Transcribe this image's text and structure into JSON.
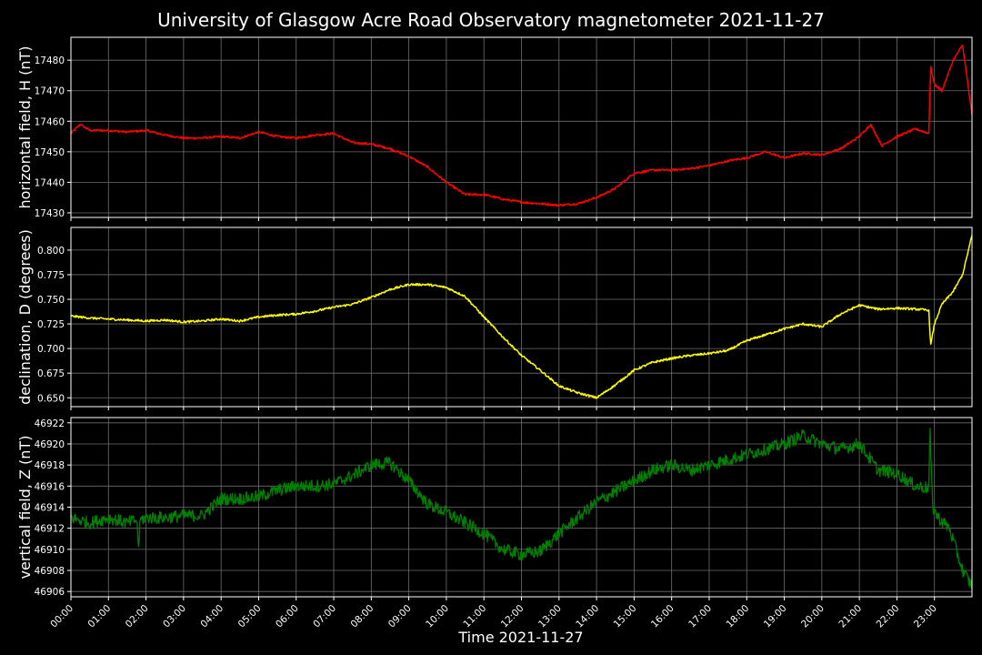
{
  "title": "University of Glasgow Acre Road Observatory magnetometer 2021-11-27",
  "xlabel": "Time 2021-11-27",
  "x_tick_labels": [
    "00:00",
    "01:00",
    "02:00",
    "03:00",
    "04:00",
    "05:00",
    "06:00",
    "07:00",
    "08:00",
    "09:00",
    "10:00",
    "11:00",
    "12:00",
    "13:00",
    "14:00",
    "15:00",
    "16:00",
    "17:00",
    "18:00",
    "19:00",
    "20:00",
    "21:00",
    "22:00",
    "23:00"
  ],
  "chart_data": [
    {
      "type": "line",
      "ylabel": "horizontal field, H (nT)",
      "color": "#ff0000",
      "ylim": [
        17428.5,
        17487.5
      ],
      "yticks": [
        17430,
        17440,
        17450,
        17460,
        17470,
        17480
      ],
      "x_hours": [
        0,
        0.25,
        0.5,
        1,
        1.5,
        2,
        2.5,
        3,
        3.5,
        4,
        4.5,
        5,
        5.5,
        6,
        6.5,
        7,
        7.5,
        8,
        8.5,
        9,
        9.5,
        10,
        10.5,
        11,
        11.5,
        12,
        12.5,
        13,
        13.5,
        14,
        14.5,
        15,
        15.5,
        16,
        16.5,
        17,
        17.5,
        18,
        18.5,
        19,
        19.5,
        20,
        20.5,
        21,
        21.3,
        21.6,
        22,
        22.5,
        22.85,
        22.9,
        23.0,
        23.2,
        23.5,
        23.75,
        24
      ],
      "values": [
        17456,
        17459,
        17457,
        17457,
        17456.5,
        17457,
        17455.5,
        17454.5,
        17454.5,
        17455,
        17454.5,
        17456.5,
        17455,
        17454.5,
        17455.5,
        17456,
        17453,
        17452.5,
        17451,
        17448.5,
        17445,
        17440,
        17436,
        17436,
        17434.5,
        17433.5,
        17433,
        17432.5,
        17433,
        17435,
        17438,
        17443,
        17444,
        17444,
        17444.5,
        17445.5,
        17447,
        17448,
        17450,
        17448,
        17449.5,
        17449,
        17451,
        17455,
        17459,
        17452,
        17455,
        17457.5,
        17456,
        17478,
        17472,
        17470,
        17480,
        17485,
        17462
      ]
    },
    {
      "type": "line",
      "ylabel": "declination, D (degrees)",
      "color": "#ffff00",
      "ylim": [
        0.641,
        0.823
      ],
      "yticks": [
        0.65,
        0.675,
        0.7,
        0.725,
        0.75,
        0.775,
        0.8
      ],
      "x_hours": [
        0,
        0.5,
        1,
        1.5,
        2,
        2.5,
        3,
        3.5,
        4,
        4.5,
        5,
        5.5,
        6,
        6.5,
        7,
        7.5,
        8,
        8.5,
        9,
        9.5,
        10,
        10.5,
        11,
        11.5,
        12,
        12.5,
        13,
        13.5,
        14,
        14.5,
        15,
        15.5,
        16,
        16.5,
        17,
        17.5,
        18,
        18.5,
        19,
        19.5,
        20,
        20.5,
        21,
        21.5,
        22,
        22.5,
        22.85,
        22.9,
        23.0,
        23.2,
        23.5,
        23.75,
        24
      ],
      "values": [
        0.733,
        0.731,
        0.73,
        0.729,
        0.728,
        0.729,
        0.727,
        0.728,
        0.73,
        0.728,
        0.732,
        0.734,
        0.735,
        0.738,
        0.742,
        0.745,
        0.752,
        0.76,
        0.765,
        0.765,
        0.762,
        0.753,
        0.732,
        0.712,
        0.693,
        0.678,
        0.662,
        0.655,
        0.65,
        0.663,
        0.678,
        0.686,
        0.69,
        0.693,
        0.695,
        0.698,
        0.708,
        0.714,
        0.72,
        0.725,
        0.722,
        0.735,
        0.744,
        0.74,
        0.741,
        0.74,
        0.739,
        0.703,
        0.725,
        0.745,
        0.758,
        0.775,
        0.815
      ]
    },
    {
      "type": "line",
      "ylabel": "vertical field, Z (nT)",
      "color": "#008000",
      "ylim": [
        46905.5,
        46922.5
      ],
      "yticks": [
        46906,
        46908,
        46910,
        46912,
        46914,
        46916,
        46918,
        46920,
        46922
      ],
      "x_hours": [
        0,
        0.5,
        1,
        1.5,
        1.75,
        1.8,
        1.85,
        2,
        2.5,
        3,
        3.5,
        4,
        4.5,
        5,
        5.5,
        6,
        6.5,
        7,
        7.5,
        8,
        8.5,
        9,
        9.5,
        10,
        10.5,
        11,
        11.5,
        12,
        12.5,
        13,
        13.5,
        14,
        14.5,
        15,
        15.5,
        16,
        16.5,
        17,
        17.5,
        18,
        18.5,
        19,
        19.5,
        20,
        20.5,
        21,
        21.5,
        22,
        22.5,
        22.85,
        22.88,
        22.95,
        23.1,
        23.4,
        23.75,
        24
      ],
      "values": [
        46913,
        46912.5,
        46913,
        46912.5,
        46912.8,
        46910.3,
        46912.8,
        46913,
        46913,
        46913.2,
        46913.2,
        46914.8,
        46914.8,
        46915,
        46915.6,
        46916,
        46916,
        46916.2,
        46917,
        46918,
        46918.2,
        46916.5,
        46914.3,
        46913.5,
        46912.5,
        46911.5,
        46910,
        46909.5,
        46909.8,
        46911.5,
        46913,
        46914.5,
        46915.5,
        46916.5,
        46917.5,
        46918,
        46917.5,
        46918,
        46918.5,
        46919,
        46919.5,
        46920,
        46920.8,
        46920,
        46919.5,
        46920,
        46917.5,
        46917.2,
        46916,
        46915.8,
        46921.5,
        46914,
        46913,
        46912,
        46908,
        46906.5
      ]
    }
  ]
}
